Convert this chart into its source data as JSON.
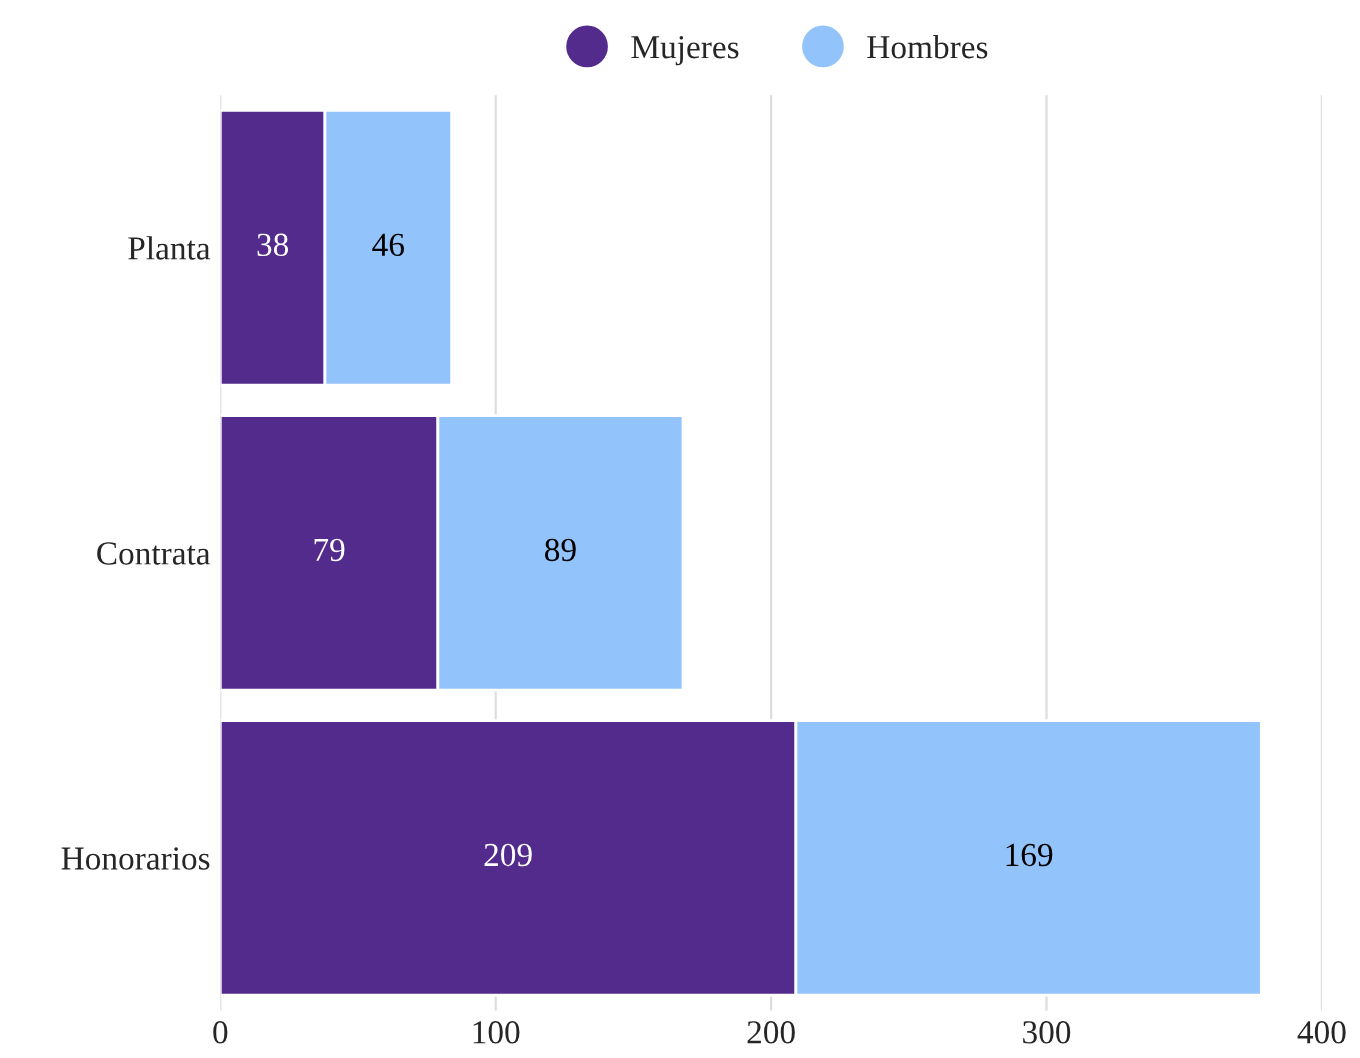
{
  "chart_data": {
    "type": "bar",
    "orientation": "horizontal",
    "stacked": true,
    "categories": [
      "Planta",
      "Contrata",
      "Honorarios"
    ],
    "series": [
      {
        "name": "Mujeres",
        "color": "#532b8c",
        "values": [
          38,
          79,
          209
        ]
      },
      {
        "name": "Hombres",
        "color": "#93c3fb",
        "values": [
          46,
          89,
          169
        ]
      }
    ],
    "xlim": [
      0,
      400
    ],
    "xticks": [
      0,
      100,
      200,
      300,
      400
    ],
    "grid": "x",
    "legend": "top",
    "data_labels": true
  }
}
